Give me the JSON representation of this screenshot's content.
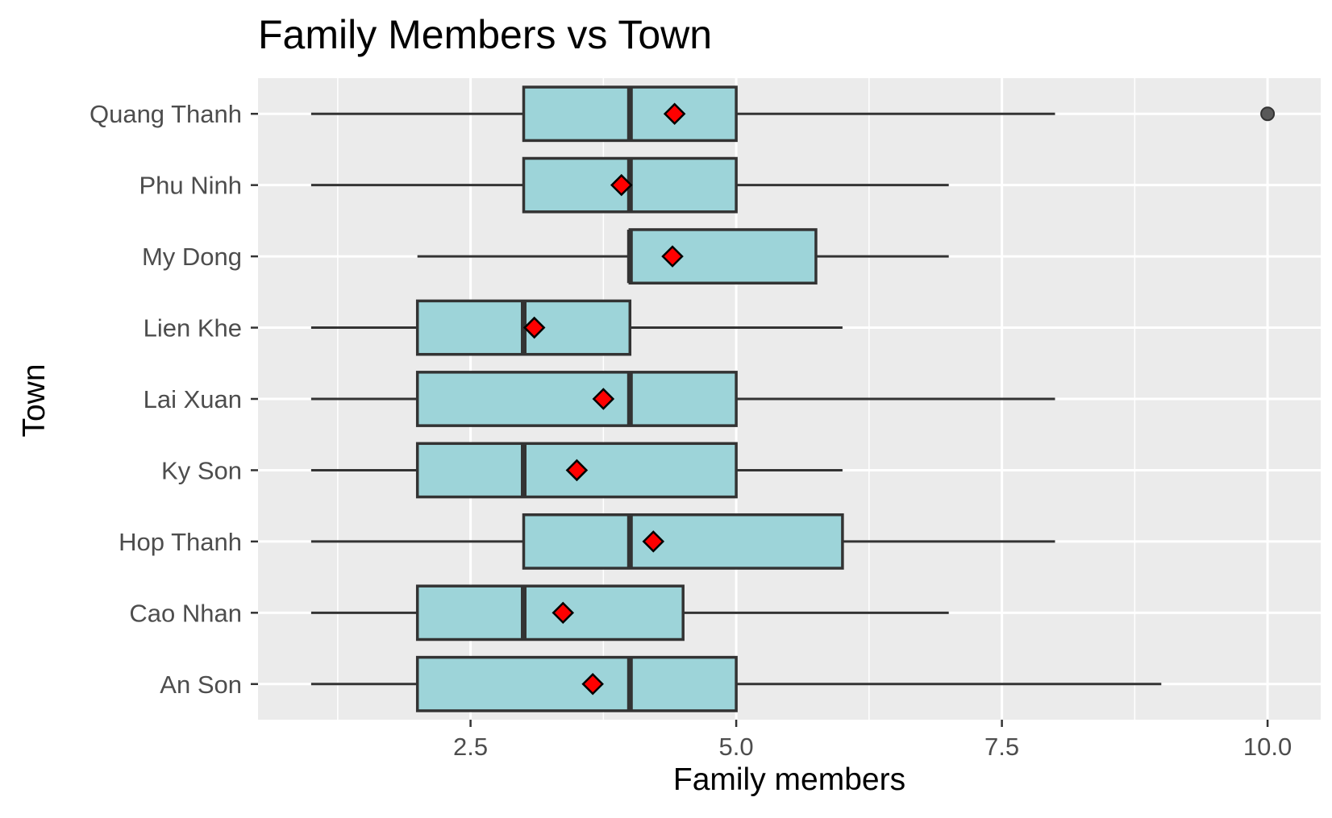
{
  "chart_data": {
    "type": "boxplot",
    "orientation": "horizontal",
    "title": "Family Members vs Town",
    "xlabel": "Family members",
    "ylabel": "Town",
    "xlim": [
      0.5,
      10.5
    ],
    "x_ticks": [
      2.5,
      5.0,
      7.5,
      10.0
    ],
    "x_tick_labels": [
      "2.5",
      "5.0",
      "7.5",
      "10.0"
    ],
    "grid": true,
    "categories": [
      "An Son",
      "Cao Nhan",
      "Hop Thanh",
      "Ky Son",
      "Lai Xuan",
      "Lien Khe",
      "My Dong",
      "Phu Ninh",
      "Quang Thanh"
    ],
    "boxes": [
      {
        "town": "An Son",
        "whisker_low": 1,
        "q1": 2,
        "median": 4,
        "q3": 5,
        "whisker_high": 9,
        "mean": 3.65,
        "outliers": []
      },
      {
        "town": "Cao Nhan",
        "whisker_low": 1,
        "q1": 2,
        "median": 3,
        "q3": 4.5,
        "whisker_high": 7,
        "mean": 3.37,
        "outliers": []
      },
      {
        "town": "Hop Thanh",
        "whisker_low": 1,
        "q1": 3,
        "median": 4,
        "q3": 6,
        "whisker_high": 8,
        "mean": 4.22,
        "outliers": []
      },
      {
        "town": "Ky Son",
        "whisker_low": 1,
        "q1": 2,
        "median": 3,
        "q3": 5,
        "whisker_high": 6,
        "mean": 3.5,
        "outliers": []
      },
      {
        "town": "Lai Xuan",
        "whisker_low": 1,
        "q1": 2,
        "median": 4,
        "q3": 5,
        "whisker_high": 8,
        "mean": 3.75,
        "outliers": []
      },
      {
        "town": "Lien Khe",
        "whisker_low": 1,
        "q1": 2,
        "median": 3,
        "q3": 4,
        "whisker_high": 6,
        "mean": 3.1,
        "outliers": []
      },
      {
        "town": "My Dong",
        "whisker_low": 2,
        "q1": 4,
        "median": 4,
        "q3": 5.75,
        "whisker_high": 7,
        "mean": 4.4,
        "outliers": []
      },
      {
        "town": "Phu Ninh",
        "whisker_low": 1,
        "q1": 3,
        "median": 4,
        "q3": 5,
        "whisker_high": 7,
        "mean": 3.92,
        "outliers": []
      },
      {
        "town": "Quang Thanh",
        "whisker_low": 1,
        "q1": 3,
        "median": 4,
        "q3": 5,
        "whisker_high": 8,
        "mean": 4.42,
        "outliers": [
          10
        ]
      }
    ],
    "colors": {
      "box_fill": "#9dd4d9",
      "box_stroke": "#333333",
      "mean_marker": "#ff0000",
      "outlier": "#595959",
      "panel_bg": "#ebebeb",
      "grid": "#ffffff"
    }
  }
}
